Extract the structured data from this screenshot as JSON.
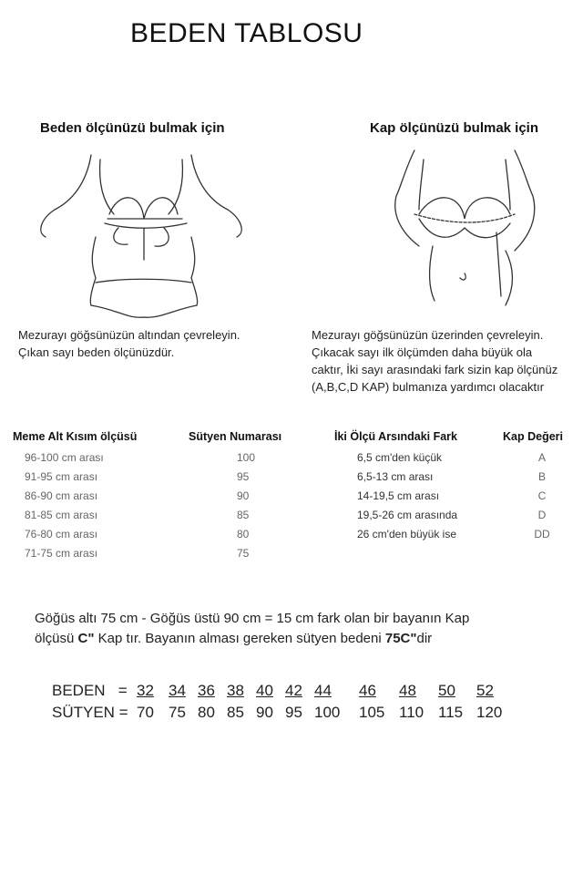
{
  "title": "BEDEN TABLOSU",
  "left_section": {
    "heading": "Beden ölçünüzü bulmak için",
    "lines": [
      "Mezurayı göğsünüzün altından çevreleyin.",
      "Çıkan sayı beden ölçünüzdür."
    ]
  },
  "right_section": {
    "heading": "Kap ölçünüzü bulmak için",
    "lines": [
      "Mezurayı göğsünüzün üzerinden çevreleyin.",
      "Çıkacak sayı ilk ölçümden daha büyük ola",
      "caktır, İki sayı arasındaki fark sizin kap ölçünüz",
      "(A,B,C,D KAP) bulmanıza yardımcı olacaktır"
    ]
  },
  "table_left": {
    "headers": [
      "Meme Alt Kısım ölçüsü",
      "Sütyen Numarası"
    ],
    "rows": [
      [
        "96-100 cm arası",
        "100"
      ],
      [
        "91-95 cm arası",
        "95"
      ],
      [
        "86-90 cm arası",
        "90"
      ],
      [
        "81-85 cm arası",
        "85"
      ],
      [
        "76-80 cm arası",
        "80"
      ],
      [
        "71-75 cm arası",
        "75"
      ]
    ]
  },
  "table_right": {
    "headers": [
      "İki Ölçü Arsındaki Fark",
      "Kap Değeri"
    ],
    "rows": [
      [
        "6,5 cm'den küçük",
        "A"
      ],
      [
        "6,5-13 cm arası",
        "B"
      ],
      [
        "14-19,5 cm arası",
        "C"
      ],
      [
        "19,5-26 cm arasında",
        "D"
      ],
      [
        "26 cm'den büyük ise",
        "DD"
      ]
    ]
  },
  "example": {
    "line1": "Göğüs altı 75 cm - Göğüs üstü 90 cm = 15 cm fark olan bir bayanın Kap",
    "line2_a": "ölçüsü ",
    "line2_b": "C\"",
    "line2_c": " Kap tır. Bayanın alması gereken sütyen bedeni ",
    "line2_d": "75C\"",
    "line2_e": "dir"
  },
  "size_map": {
    "beden_label": "BEDEN   =",
    "sutyen_label": "SÜTYEN =",
    "beden": [
      "32",
      "34",
      "36",
      "38",
      "40",
      "42",
      "44",
      "46",
      "48",
      "50",
      "52"
    ],
    "sutyen": [
      "70",
      "75",
      "80",
      "85",
      "90",
      "95",
      "100",
      "105",
      "110",
      "115",
      "120"
    ]
  }
}
